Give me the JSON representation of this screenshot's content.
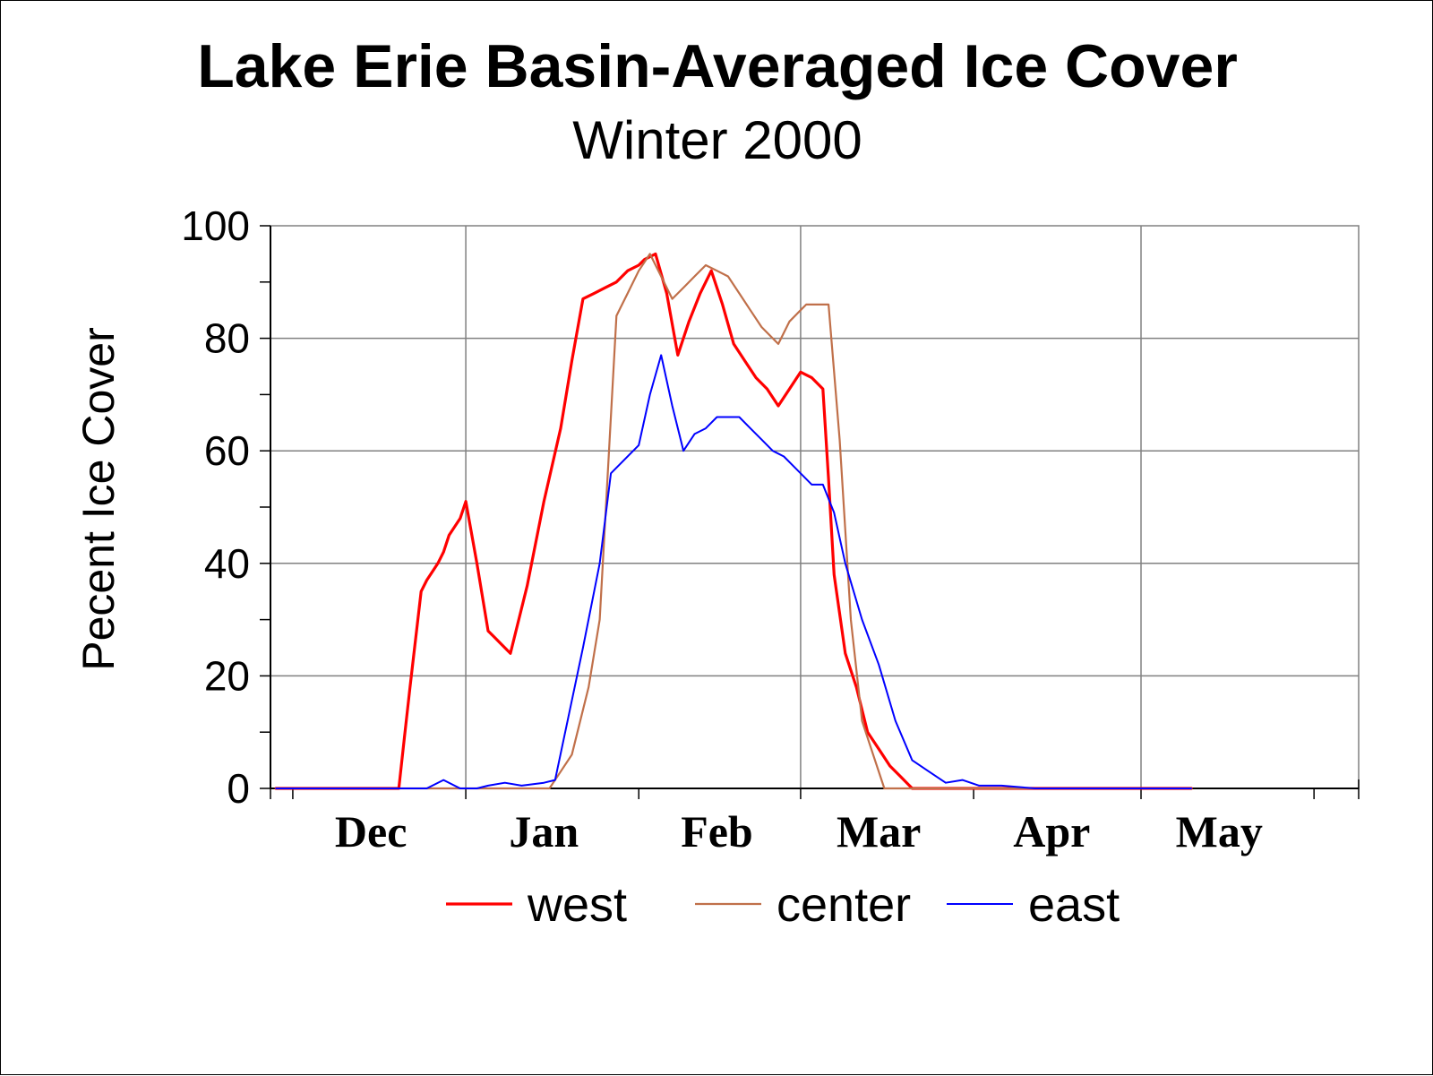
{
  "chart_data": {
    "type": "line",
    "title": "Lake Erie Basin-Averaged Ice Cover",
    "subtitle": "Winter 2000",
    "xlabel": "",
    "ylabel": "Pecent Ice Cover",
    "ylim": [
      0,
      100
    ],
    "yticks": [
      0,
      20,
      40,
      60,
      80,
      100
    ],
    "xlim": [
      "1999-11-27",
      "2000-06-09"
    ],
    "xtick_labels": [
      "Dec",
      "Jan",
      "Feb",
      "Mar",
      "Apr",
      "May"
    ],
    "xtick_dates": [
      "1999-12-15",
      "2000-01-15",
      "2000-02-15",
      "2000-03-15",
      "2000-04-15",
      "2000-05-15"
    ],
    "grid": true,
    "legend_position": "bottom",
    "series": [
      {
        "name": "west",
        "color": "#ff0000",
        "points": [
          [
            "1999-11-28",
            0
          ],
          [
            "1999-12-10",
            0
          ],
          [
            "1999-12-20",
            0
          ],
          [
            "1999-12-21",
            9
          ],
          [
            "1999-12-22",
            18
          ],
          [
            "1999-12-24",
            35
          ],
          [
            "1999-12-25",
            37
          ],
          [
            "1999-12-27",
            40
          ],
          [
            "1999-12-28",
            42
          ],
          [
            "1999-12-29",
            45
          ],
          [
            "1999-12-31",
            48
          ],
          [
            "2000-01-01",
            51
          ],
          [
            "2000-01-03",
            40
          ],
          [
            "2000-01-05",
            28
          ],
          [
            "2000-01-06",
            27
          ],
          [
            "2000-01-07",
            26
          ],
          [
            "2000-01-09",
            24
          ],
          [
            "2000-01-12",
            36
          ],
          [
            "2000-01-15",
            51
          ],
          [
            "2000-01-18",
            64
          ],
          [
            "2000-01-20",
            76
          ],
          [
            "2000-01-22",
            87
          ],
          [
            "2000-01-24",
            88
          ],
          [
            "2000-01-26",
            89
          ],
          [
            "2000-01-28",
            90
          ],
          [
            "2000-01-30",
            92
          ],
          [
            "2000-02-01",
            93
          ],
          [
            "2000-02-02",
            94
          ],
          [
            "2000-02-04",
            95
          ],
          [
            "2000-02-06",
            88
          ],
          [
            "2000-02-08",
            77
          ],
          [
            "2000-02-10",
            83
          ],
          [
            "2000-02-12",
            88
          ],
          [
            "2000-02-14",
            92
          ],
          [
            "2000-02-16",
            86
          ],
          [
            "2000-02-18",
            79
          ],
          [
            "2000-02-20",
            76
          ],
          [
            "2000-02-22",
            73
          ],
          [
            "2000-02-24",
            71
          ],
          [
            "2000-02-26",
            68
          ],
          [
            "2000-02-28",
            71
          ],
          [
            "2000-03-01",
            74
          ],
          [
            "2000-03-03",
            73
          ],
          [
            "2000-03-05",
            71
          ],
          [
            "2000-03-06",
            55
          ],
          [
            "2000-03-07",
            38
          ],
          [
            "2000-03-09",
            24
          ],
          [
            "2000-03-11",
            18
          ],
          [
            "2000-03-13",
            10
          ],
          [
            "2000-03-15",
            7
          ],
          [
            "2000-03-17",
            4
          ],
          [
            "2000-03-19",
            2
          ],
          [
            "2000-03-21",
            0
          ],
          [
            "2000-04-15",
            0
          ],
          [
            "2000-05-10",
            0
          ]
        ]
      },
      {
        "name": "center",
        "color": "#c0704a",
        "points": [
          [
            "1999-11-28",
            0
          ],
          [
            "1999-12-20",
            0
          ],
          [
            "1999-12-28",
            0
          ],
          [
            "2000-01-05",
            0
          ],
          [
            "2000-01-15",
            0
          ],
          [
            "2000-01-16",
            0
          ],
          [
            "2000-01-18",
            3
          ],
          [
            "2000-01-20",
            6
          ],
          [
            "2000-01-23",
            18
          ],
          [
            "2000-01-25",
            30
          ],
          [
            "2000-01-28",
            84
          ],
          [
            "2000-01-30",
            88
          ],
          [
            "2000-02-01",
            92
          ],
          [
            "2000-02-03",
            95
          ],
          [
            "2000-02-05",
            91
          ],
          [
            "2000-02-07",
            87
          ],
          [
            "2000-02-09",
            89
          ],
          [
            "2000-02-11",
            91
          ],
          [
            "2000-02-13",
            93
          ],
          [
            "2000-02-15",
            92
          ],
          [
            "2000-02-17",
            91
          ],
          [
            "2000-02-19",
            88
          ],
          [
            "2000-02-21",
            85
          ],
          [
            "2000-02-23",
            82
          ],
          [
            "2000-02-26",
            79
          ],
          [
            "2000-02-28",
            83
          ],
          [
            "2000-03-01",
            85
          ],
          [
            "2000-03-02",
            86
          ],
          [
            "2000-03-04",
            86
          ],
          [
            "2000-03-06",
            86
          ],
          [
            "2000-03-08",
            62
          ],
          [
            "2000-03-10",
            30
          ],
          [
            "2000-03-12",
            12
          ],
          [
            "2000-03-14",
            6
          ],
          [
            "2000-03-16",
            0
          ],
          [
            "2000-04-15",
            0
          ],
          [
            "2000-05-10",
            0
          ]
        ]
      },
      {
        "name": "east",
        "color": "#0000ff",
        "points": [
          [
            "1999-11-28",
            0
          ],
          [
            "1999-12-20",
            0
          ],
          [
            "1999-12-25",
            0
          ],
          [
            "1999-12-28",
            1.5
          ],
          [
            "1999-12-31",
            0
          ],
          [
            "2000-01-03",
            0
          ],
          [
            "2000-01-05",
            0.5
          ],
          [
            "2000-01-08",
            1
          ],
          [
            "2000-01-11",
            0.5
          ],
          [
            "2000-01-15",
            1
          ],
          [
            "2000-01-17",
            1.5
          ],
          [
            "2000-01-22",
            25
          ],
          [
            "2000-01-25",
            40
          ],
          [
            "2000-01-27",
            56
          ],
          [
            "2000-01-29",
            58
          ],
          [
            "2000-02-01",
            61
          ],
          [
            "2000-02-03",
            70
          ],
          [
            "2000-02-05",
            77
          ],
          [
            "2000-02-07",
            68
          ],
          [
            "2000-02-09",
            60
          ],
          [
            "2000-02-11",
            63
          ],
          [
            "2000-02-13",
            64
          ],
          [
            "2000-02-15",
            66
          ],
          [
            "2000-02-17",
            66
          ],
          [
            "2000-02-19",
            66
          ],
          [
            "2000-02-21",
            64
          ],
          [
            "2000-02-23",
            62
          ],
          [
            "2000-02-25",
            60
          ],
          [
            "2000-02-27",
            59
          ],
          [
            "2000-03-01",
            56
          ],
          [
            "2000-03-03",
            54
          ],
          [
            "2000-03-05",
            54
          ],
          [
            "2000-03-07",
            49
          ],
          [
            "2000-03-09",
            40
          ],
          [
            "2000-03-12",
            30
          ],
          [
            "2000-03-15",
            22
          ],
          [
            "2000-03-18",
            12
          ],
          [
            "2000-03-21",
            5
          ],
          [
            "2000-03-24",
            3
          ],
          [
            "2000-03-27",
            1
          ],
          [
            "2000-03-30",
            1.5
          ],
          [
            "2000-04-02",
            0.5
          ],
          [
            "2000-04-06",
            0.5
          ],
          [
            "2000-04-12",
            0
          ],
          [
            "2000-05-10",
            0
          ]
        ]
      }
    ]
  }
}
